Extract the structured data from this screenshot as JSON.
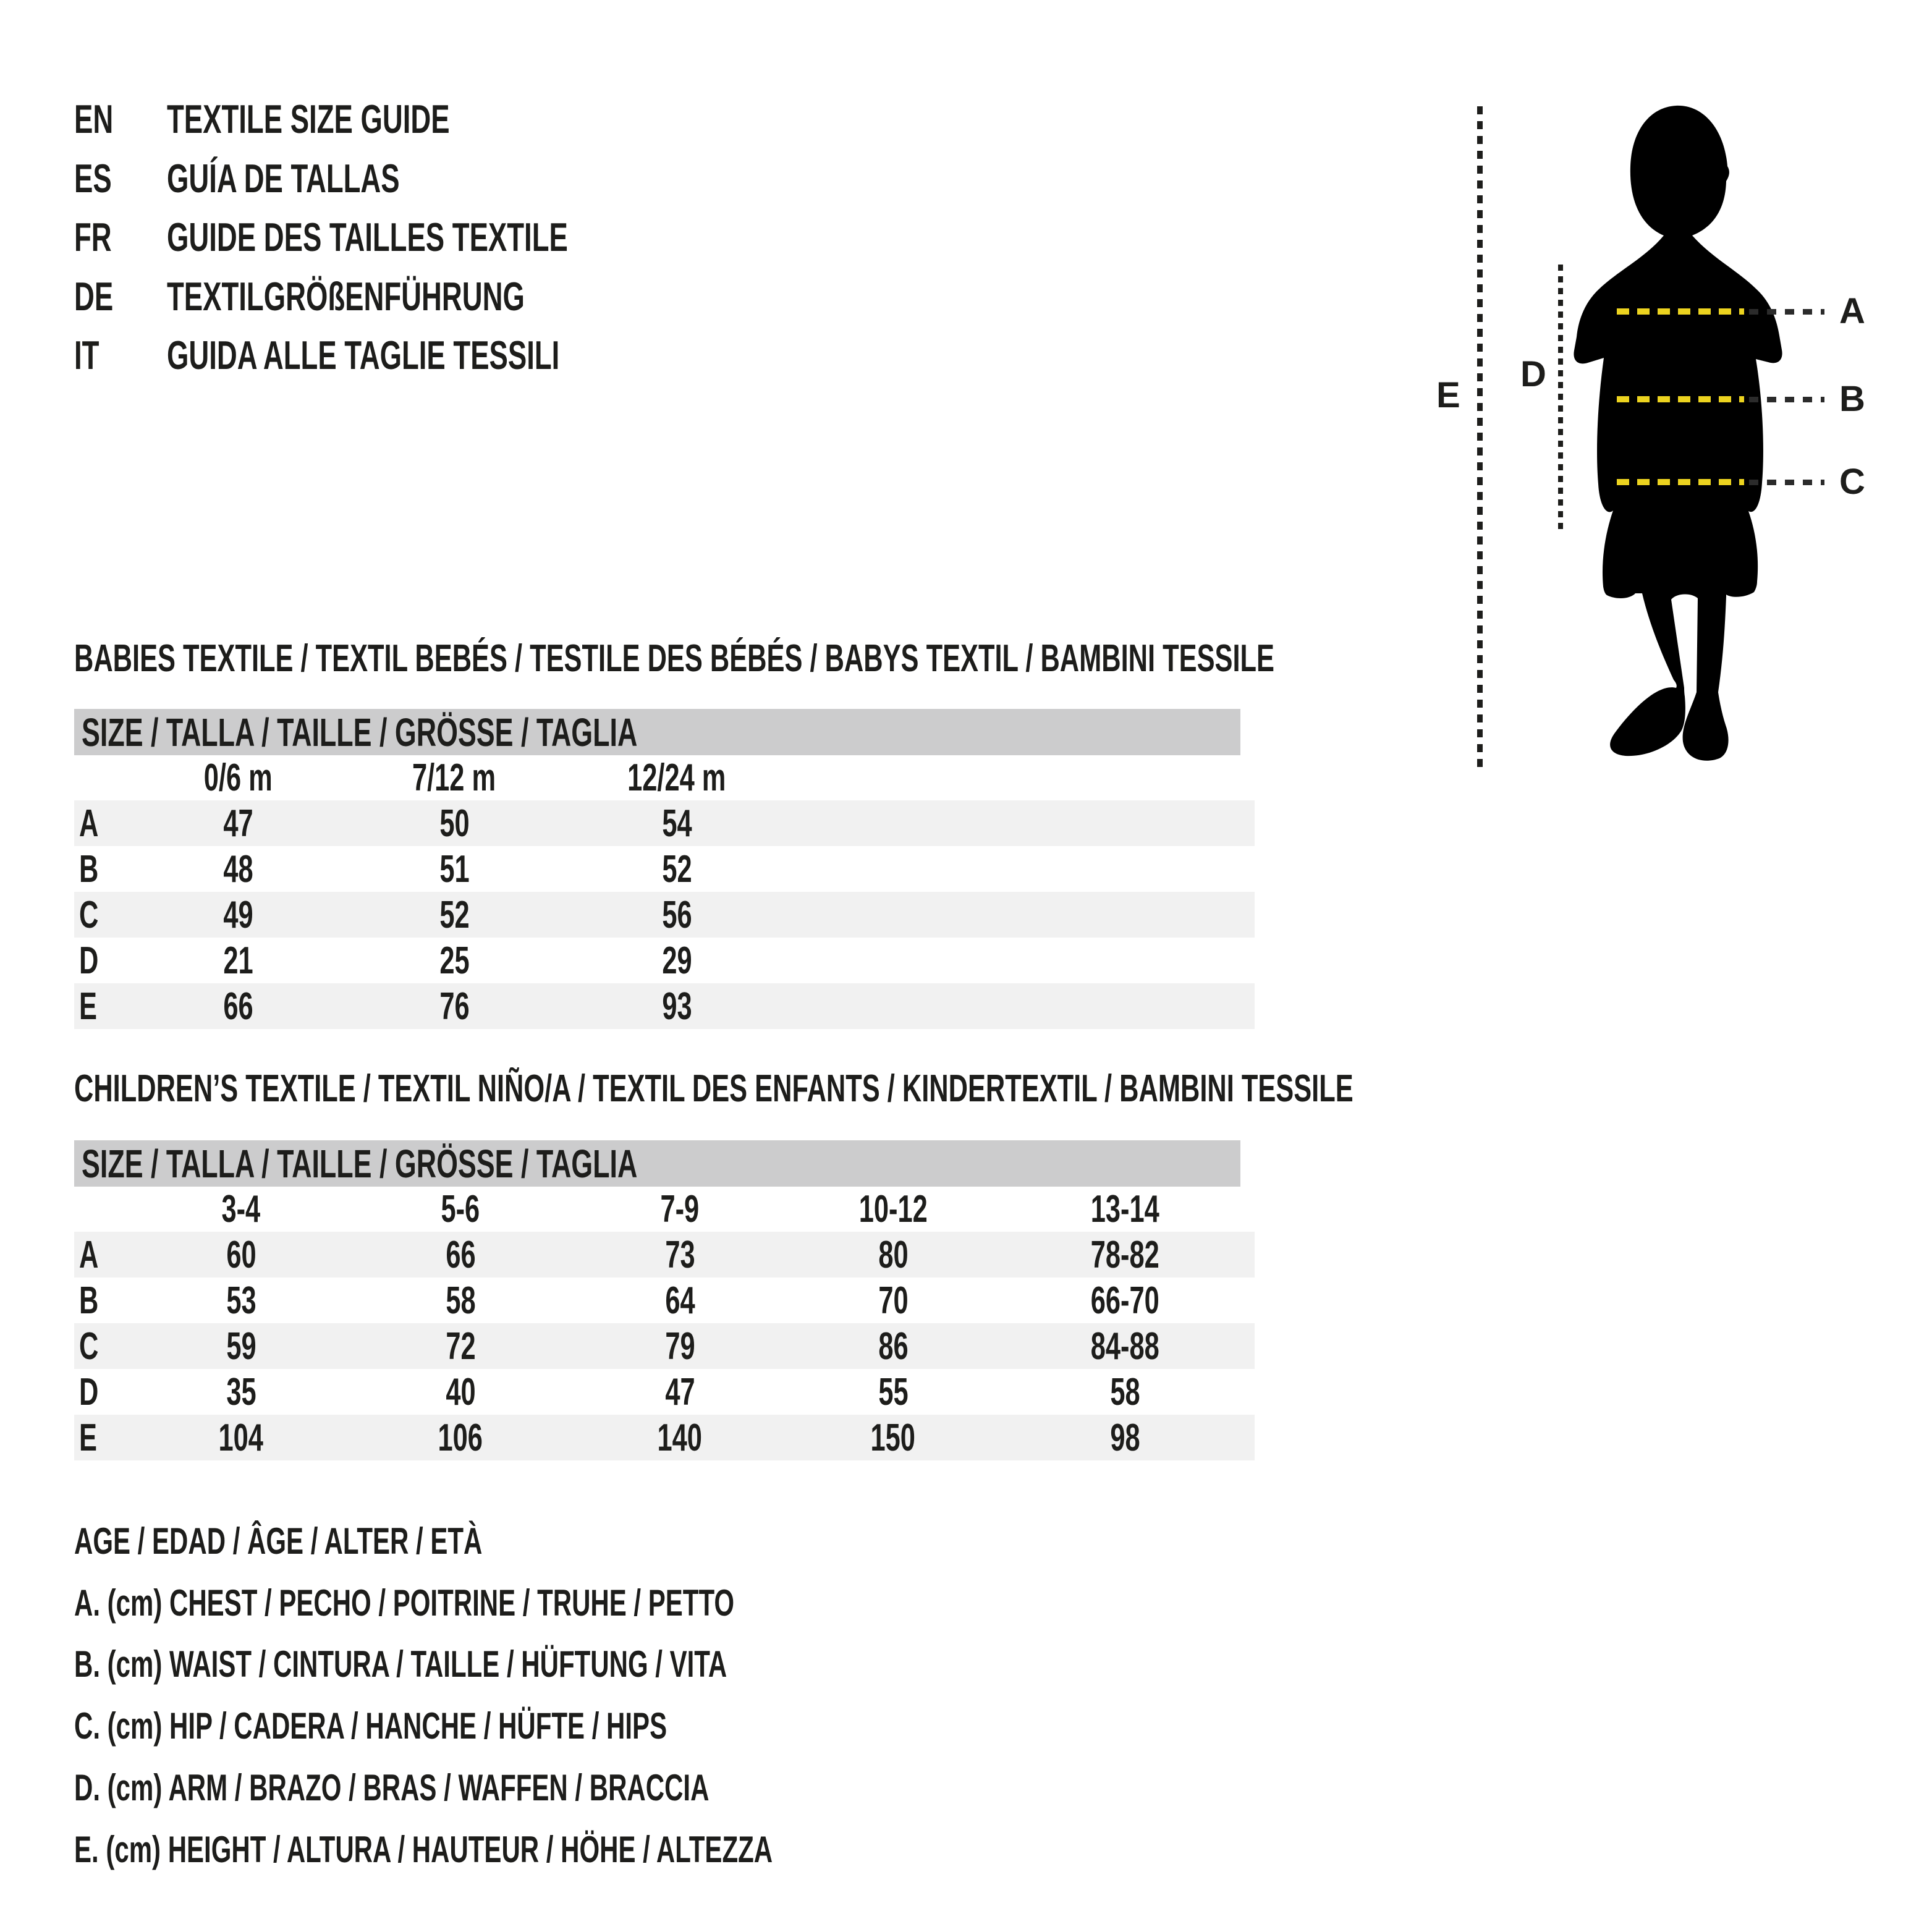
{
  "languages": [
    {
      "code": "EN",
      "title": "TEXTILE SIZE GUIDE"
    },
    {
      "code": "ES",
      "title": "GUÍA DE TALLAS"
    },
    {
      "code": "FR",
      "title": "GUIDE DES TAILLES TEXTILE"
    },
    {
      "code": "DE",
      "title": "TEXTILGRÖßENFÜHRUNG"
    },
    {
      "code": "IT",
      "title": "GUIDA ALLE TAGLIE TESSILI"
    }
  ],
  "figure": {
    "labels": {
      "a": "A",
      "b": "B",
      "c": "C",
      "d": "D",
      "e": "E"
    },
    "colors": {
      "yellow_dash": "#ecd31f",
      "dark_dash": "#2b2b2b",
      "silhouette": "#000000"
    }
  },
  "babies_table": {
    "section_title": "BABIES TEXTILE / TEXTIL BEBÉS / TESTILE DES BÉBÉS / BABYS TEXTIL / BAMBINI TESSILE",
    "size_header": "SIZE / TALLA / TAILLE / GRÖSSE / TAGLIA",
    "columns": [
      "0/6 m",
      "7/12 m",
      "12/24 m"
    ],
    "rows": [
      {
        "label": "A",
        "values": [
          "47",
          "50",
          "54"
        ]
      },
      {
        "label": "B",
        "values": [
          "48",
          "51",
          "52"
        ]
      },
      {
        "label": "C",
        "values": [
          "49",
          "52",
          "56"
        ]
      },
      {
        "label": "D",
        "values": [
          "21",
          "25",
          "29"
        ]
      },
      {
        "label": "E",
        "values": [
          "66",
          "76",
          "93"
        ]
      }
    ]
  },
  "children_table": {
    "section_title": "CHILDREN’S TEXTILE / TEXTIL NIÑO/A / TEXTIL DES ENFANTS / KINDERTEXTIL / BAMBINI TESSILE",
    "size_header": "SIZE / TALLA / TAILLE / GRÖSSE / TAGLIA",
    "columns": [
      "3-4",
      "5-6",
      "7-9",
      "10-12",
      "13-14"
    ],
    "rows": [
      {
        "label": "A",
        "values": [
          "60",
          "66",
          "73",
          "80",
          "78-82"
        ]
      },
      {
        "label": "B",
        "values": [
          "53",
          "58",
          "64",
          "70",
          "66-70"
        ]
      },
      {
        "label": "C",
        "values": [
          "59",
          "72",
          "79",
          "86",
          "84-88"
        ]
      },
      {
        "label": "D",
        "values": [
          "35",
          "40",
          "47",
          "55",
          "58"
        ]
      },
      {
        "label": "E",
        "values": [
          "104",
          "106",
          "140",
          "150",
          "98"
        ]
      }
    ]
  },
  "legend": {
    "lines": [
      "AGE / EDAD / ÂGE / ALTER / ETÀ",
      "A. (cm) CHEST / PECHO / POITRINE / TRUHE / PETTO",
      "B. (cm) WAIST / CINTURA / TAILLE / HÜFTUNG / VITA",
      "C. (cm) HIP / CADERA / HANCHE / HÜFTE / HIPS",
      "D. (cm) ARM / BRAZO / BRAS / WAFFEN / BRACCIA",
      "E. (cm) HEIGHT / ALTURA / HAUTEUR / HÖHE / ALTEZZA"
    ]
  },
  "colors": {
    "text": "#1d1d1b",
    "header_bar": "#cccccd",
    "row_stripe": "#f1f1f1",
    "yellow": "#ecd31f"
  }
}
